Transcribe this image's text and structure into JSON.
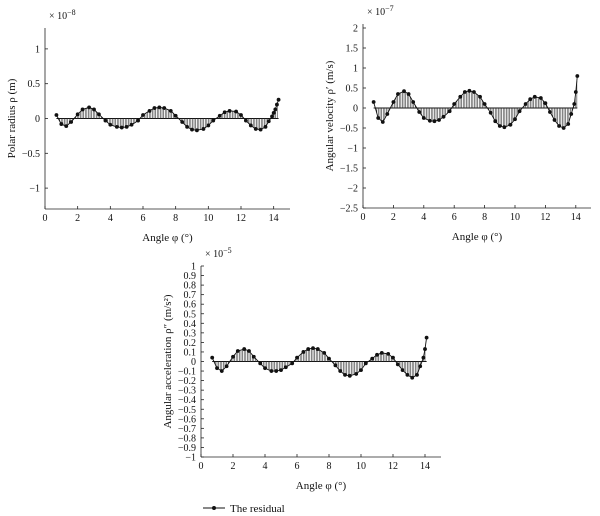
{
  "chart_data": [
    {
      "type": "scatter",
      "xlabel": "Angle φ (°)",
      "ylabel": "Polar radius ρ (m)",
      "multiplier": "× 10",
      "multiplier_exp": "−8",
      "xlim": [
        0,
        15
      ],
      "ylim": [
        -1.3,
        1.3
      ],
      "xticks": [
        "0",
        "2",
        "4",
        "6",
        "8",
        "10",
        "12",
        "14"
      ],
      "yticks": [
        "−1",
        "−0.5",
        "0",
        "0.5",
        "1"
      ],
      "x": [
        0.7,
        1.0,
        1.3,
        1.6,
        2.0,
        2.3,
        2.7,
        3.0,
        3.3,
        3.7,
        4.0,
        4.4,
        4.7,
        5.0,
        5.3,
        5.7,
        6.0,
        6.4,
        6.7,
        7.0,
        7.3,
        7.7,
        8.0,
        8.4,
        8.7,
        9.0,
        9.3,
        9.7,
        10.0,
        10.3,
        10.7,
        11.0,
        11.3,
        11.7,
        12.0,
        12.3,
        12.6,
        12.9,
        13.2,
        13.5,
        13.7,
        13.9,
        14.0,
        14.1,
        14.2,
        14.3
      ],
      "y": [
        0.05,
        -0.08,
        -0.11,
        -0.05,
        0.06,
        0.13,
        0.16,
        0.13,
        0.06,
        -0.03,
        -0.09,
        -0.12,
        -0.13,
        -0.12,
        -0.09,
        -0.03,
        0.05,
        0.11,
        0.15,
        0.16,
        0.15,
        0.11,
        0.04,
        -0.05,
        -0.12,
        -0.16,
        -0.17,
        -0.15,
        -0.1,
        -0.03,
        0.04,
        0.09,
        0.11,
        0.1,
        0.05,
        -0.03,
        -0.1,
        -0.15,
        -0.16,
        -0.12,
        -0.04,
        0.03,
        0.08,
        0.13,
        0.2,
        0.27
      ]
    },
    {
      "type": "scatter",
      "xlabel": "Angle φ (°)",
      "ylabel": "Angular velocity ρ′ (m/s)",
      "multiplier": "× 10",
      "multiplier_exp": "−7",
      "xlim": [
        0,
        15
      ],
      "ylim": [
        -2.5,
        2.1
      ],
      "xticks": [
        "0",
        "2",
        "4",
        "6",
        "8",
        "10",
        "12",
        "14"
      ],
      "yticks": [
        "−2.5",
        "−2",
        "−1.5",
        "−1",
        "−0.5",
        "0",
        "0.5",
        "1",
        "1.5",
        "2"
      ],
      "x": [
        0.7,
        1.0,
        1.3,
        1.6,
        2.0,
        2.3,
        2.7,
        3.0,
        3.3,
        3.7,
        4.0,
        4.4,
        4.7,
        5.0,
        5.3,
        5.7,
        6.0,
        6.4,
        6.7,
        7.0,
        7.3,
        7.7,
        8.0,
        8.4,
        8.7,
        9.0,
        9.3,
        9.7,
        10.0,
        10.3,
        10.7,
        11.0,
        11.3,
        11.7,
        12.0,
        12.3,
        12.6,
        12.9,
        13.2,
        13.5,
        13.7,
        13.9,
        14.0,
        14.1
      ],
      "y": [
        0.15,
        -0.25,
        -0.35,
        -0.15,
        0.15,
        0.35,
        0.42,
        0.35,
        0.15,
        -0.1,
        -0.25,
        -0.32,
        -0.33,
        -0.3,
        -0.22,
        -0.08,
        0.1,
        0.28,
        0.4,
        0.43,
        0.4,
        0.28,
        0.1,
        -0.12,
        -0.33,
        -0.45,
        -0.48,
        -0.42,
        -0.28,
        -0.08,
        0.1,
        0.22,
        0.28,
        0.25,
        0.12,
        -0.1,
        -0.3,
        -0.45,
        -0.5,
        -0.4,
        -0.15,
        0.1,
        0.4,
        0.8
      ]
    },
    {
      "type": "scatter",
      "xlabel": "Angle φ (°)",
      "ylabel": "Angular acceleration ρ″ (m/s²)",
      "multiplier": "× 10",
      "multiplier_exp": "−5",
      "xlim": [
        0,
        15
      ],
      "ylim": [
        -1.0,
        1.0
      ],
      "xticks": [
        "0",
        "2",
        "4",
        "6",
        "8",
        "10",
        "12",
        "14"
      ],
      "yticks": [
        "−1",
        "−0.9",
        "−0.8",
        "−0.7",
        "−0.6",
        "−0.5",
        "−0.4",
        "−0.3",
        "−0.2",
        "−0.1",
        "0",
        "0.1",
        "0.2",
        "0.3",
        "0.4",
        "0.5",
        "0.6",
        "0.7",
        "0.8",
        "0.9",
        "1"
      ],
      "x": [
        0.7,
        1.0,
        1.3,
        1.6,
        2.0,
        2.3,
        2.7,
        3.0,
        3.3,
        3.7,
        4.0,
        4.4,
        4.7,
        5.0,
        5.3,
        5.7,
        6.0,
        6.4,
        6.7,
        7.0,
        7.3,
        7.7,
        8.0,
        8.4,
        8.7,
        9.0,
        9.3,
        9.7,
        10.0,
        10.3,
        10.7,
        11.0,
        11.3,
        11.7,
        12.0,
        12.3,
        12.6,
        12.9,
        13.2,
        13.5,
        13.7,
        13.9,
        14.0,
        14.1
      ],
      "y": [
        0.04,
        -0.07,
        -0.1,
        -0.05,
        0.05,
        0.11,
        0.13,
        0.11,
        0.05,
        -0.02,
        -0.07,
        -0.1,
        -0.1,
        -0.09,
        -0.06,
        -0.02,
        0.04,
        0.1,
        0.13,
        0.14,
        0.13,
        0.09,
        0.03,
        -0.04,
        -0.1,
        -0.14,
        -0.15,
        -0.13,
        -0.09,
        -0.02,
        0.03,
        0.07,
        0.09,
        0.08,
        0.04,
        -0.03,
        -0.09,
        -0.14,
        -0.17,
        -0.14,
        -0.05,
        0.04,
        0.13,
        0.25
      ]
    }
  ],
  "legend": {
    "label": "The residual"
  }
}
